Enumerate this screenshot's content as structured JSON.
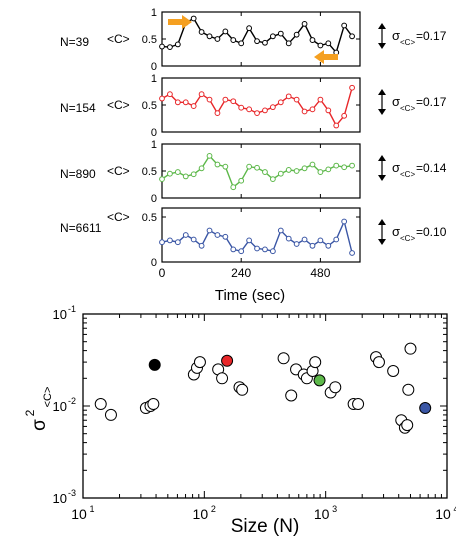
{
  "figure": {
    "top_panels": {
      "x_ticks": [
        "0",
        "240",
        "480"
      ],
      "x_label": "Time (sec)",
      "y_label": "<C>",
      "y_ticks": [
        "0",
        "0.5",
        "1"
      ],
      "arrow_color": "#f5a021"
    },
    "bottom_panel": {
      "x_label": "Size (N)",
      "y_label_main": "σ",
      "y_label_sup": "2",
      "y_label_sub": "<C>"
    }
  },
  "chart_data": [
    {
      "type": "line",
      "panel_label": "N=39",
      "sigma_label": "σ",
      "sigma_sub": "<C>",
      "sigma_value": "=0.17",
      "color": "#000000",
      "x": [
        0,
        24,
        48,
        72,
        96,
        120,
        144,
        168,
        192,
        216,
        240,
        264,
        288,
        312,
        336,
        360,
        384,
        408,
        432,
        456,
        480,
        504,
        528,
        552,
        576
      ],
      "values": [
        0.36,
        0.35,
        0.4,
        0.8,
        0.88,
        0.63,
        0.55,
        0.5,
        0.64,
        0.48,
        0.42,
        0.7,
        0.46,
        0.43,
        0.55,
        0.6,
        0.42,
        0.58,
        0.78,
        0.48,
        0.38,
        0.42,
        0.25,
        0.75,
        0.55
      ],
      "arrows": [
        "right-pointing arrow at start of rise",
        "left-pointing arrow at dip near end"
      ],
      "xlim": [
        0,
        600
      ],
      "ylim": [
        0,
        1
      ]
    },
    {
      "type": "line",
      "panel_label": "N=154",
      "sigma_label": "σ",
      "sigma_sub": "<C>",
      "sigma_value": "=0.17",
      "color": "#e8272a",
      "x": [
        0,
        24,
        48,
        72,
        96,
        120,
        144,
        168,
        192,
        216,
        240,
        264,
        288,
        312,
        336,
        360,
        384,
        408,
        432,
        456,
        480,
        504,
        528,
        552,
        576
      ],
      "values": [
        0.62,
        0.7,
        0.55,
        0.55,
        0.48,
        0.7,
        0.6,
        0.35,
        0.6,
        0.57,
        0.45,
        0.42,
        0.35,
        0.4,
        0.46,
        0.55,
        0.66,
        0.6,
        0.38,
        0.42,
        0.6,
        0.4,
        0.12,
        0.3,
        0.82
      ],
      "xlim": [
        0,
        600
      ],
      "ylim": [
        0,
        1
      ]
    },
    {
      "type": "line",
      "panel_label": "N=890",
      "sigma_label": "σ",
      "sigma_sub": "<C>",
      "sigma_value": "=0.14",
      "color": "#5db84a",
      "x": [
        0,
        24,
        48,
        72,
        96,
        120,
        144,
        168,
        192,
        216,
        240,
        264,
        288,
        312,
        336,
        360,
        384,
        408,
        432,
        456,
        480,
        504,
        528,
        552,
        576
      ],
      "values": [
        0.35,
        0.45,
        0.48,
        0.4,
        0.44,
        0.55,
        0.78,
        0.62,
        0.58,
        0.2,
        0.32,
        0.58,
        0.56,
        0.48,
        0.35,
        0.45,
        0.52,
        0.5,
        0.55,
        0.62,
        0.48,
        0.53,
        0.6,
        0.57,
        0.6
      ],
      "xlim": [
        0,
        600
      ],
      "ylim": [
        0,
        1
      ]
    },
    {
      "type": "line",
      "panel_label": "N=6611",
      "sigma_label": "σ",
      "sigma_sub": "<C>",
      "sigma_value": "=0.10",
      "color": "#3a56a5",
      "x": [
        0,
        24,
        48,
        72,
        96,
        120,
        144,
        168,
        192,
        216,
        240,
        264,
        288,
        312,
        336,
        360,
        384,
        408,
        432,
        456,
        480,
        504,
        528,
        552,
        576
      ],
      "values": [
        0.22,
        0.24,
        0.22,
        0.3,
        0.25,
        0.18,
        0.35,
        0.3,
        0.28,
        0.14,
        0.12,
        0.24,
        0.15,
        0.14,
        0.12,
        0.35,
        0.26,
        0.2,
        0.25,
        0.18,
        0.24,
        0.18,
        0.25,
        0.45,
        0.1
      ],
      "xlim": [
        0,
        600
      ],
      "ylim": [
        0,
        0.6
      ]
    },
    {
      "type": "scatter",
      "xlabel": "Size (N)",
      "ylabel": "σ²<C>",
      "x_scale": "log",
      "y_scale": "log",
      "xlim": [
        10,
        10000
      ],
      "ylim": [
        0.001,
        0.1
      ],
      "x_ticks": [
        "10^1",
        "10^2",
        "10^3",
        "10^4"
      ],
      "y_ticks": [
        "10^-3",
        "10^-2",
        "10^-1"
      ],
      "points": [
        {
          "x": 14,
          "y": 0.0105,
          "fill": "none"
        },
        {
          "x": 17,
          "y": 0.008,
          "fill": "none"
        },
        {
          "x": 33,
          "y": 0.0095,
          "fill": "none"
        },
        {
          "x": 36,
          "y": 0.01,
          "fill": "none"
        },
        {
          "x": 38,
          "y": 0.0105,
          "fill": "none"
        },
        {
          "x": 39,
          "y": 0.028,
          "fill": "#000000"
        },
        {
          "x": 82,
          "y": 0.022,
          "fill": "none"
        },
        {
          "x": 87,
          "y": 0.026,
          "fill": "none"
        },
        {
          "x": 92,
          "y": 0.03,
          "fill": "none"
        },
        {
          "x": 130,
          "y": 0.025,
          "fill": "none"
        },
        {
          "x": 140,
          "y": 0.02,
          "fill": "none"
        },
        {
          "x": 154,
          "y": 0.031,
          "fill": "#e8272a"
        },
        {
          "x": 195,
          "y": 0.016,
          "fill": "none"
        },
        {
          "x": 205,
          "y": 0.015,
          "fill": "none"
        },
        {
          "x": 450,
          "y": 0.033,
          "fill": "none"
        },
        {
          "x": 520,
          "y": 0.013,
          "fill": "none"
        },
        {
          "x": 570,
          "y": 0.025,
          "fill": "none"
        },
        {
          "x": 660,
          "y": 0.022,
          "fill": "none"
        },
        {
          "x": 700,
          "y": 0.02,
          "fill": "none"
        },
        {
          "x": 780,
          "y": 0.024,
          "fill": "none"
        },
        {
          "x": 820,
          "y": 0.03,
          "fill": "none"
        },
        {
          "x": 890,
          "y": 0.019,
          "fill": "#5db84a"
        },
        {
          "x": 1100,
          "y": 0.014,
          "fill": "none"
        },
        {
          "x": 1200,
          "y": 0.016,
          "fill": "none"
        },
        {
          "x": 1700,
          "y": 0.0105,
          "fill": "none"
        },
        {
          "x": 1850,
          "y": 0.0105,
          "fill": "none"
        },
        {
          "x": 2600,
          "y": 0.034,
          "fill": "none"
        },
        {
          "x": 2750,
          "y": 0.03,
          "fill": "none"
        },
        {
          "x": 3600,
          "y": 0.024,
          "fill": "none"
        },
        {
          "x": 4200,
          "y": 0.007,
          "fill": "none"
        },
        {
          "x": 4500,
          "y": 0.0058,
          "fill": "none"
        },
        {
          "x": 4700,
          "y": 0.0062,
          "fill": "none"
        },
        {
          "x": 4800,
          "y": 0.015,
          "fill": "none"
        },
        {
          "x": 5000,
          "y": 0.042,
          "fill": "none"
        },
        {
          "x": 6611,
          "y": 0.0095,
          "fill": "#3a56a5"
        }
      ]
    }
  ]
}
